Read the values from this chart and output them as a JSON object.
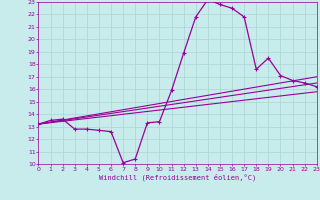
{
  "xlabel": "Windchill (Refroidissement éolien,°C)",
  "xlim": [
    0,
    23
  ],
  "ylim": [
    10,
    23
  ],
  "xticks": [
    0,
    1,
    2,
    3,
    4,
    5,
    6,
    7,
    8,
    9,
    10,
    11,
    12,
    13,
    14,
    15,
    16,
    17,
    18,
    19,
    20,
    21,
    22,
    23
  ],
  "yticks": [
    10,
    11,
    12,
    13,
    14,
    15,
    16,
    17,
    18,
    19,
    20,
    21,
    22,
    23
  ],
  "bg_color": "#c8ecec",
  "grid_color": "#aad4d4",
  "line_color": "#990099",
  "line1_x": [
    0,
    1,
    2,
    3,
    4,
    5,
    6,
    7,
    8,
    9,
    10,
    11,
    12,
    13,
    14,
    15,
    16,
    17,
    18,
    19,
    20,
    21,
    22,
    23
  ],
  "line1_y": [
    13.2,
    13.5,
    13.6,
    12.8,
    12.8,
    12.7,
    12.6,
    10.1,
    10.4,
    13.3,
    13.4,
    15.9,
    18.9,
    21.8,
    23.2,
    22.8,
    22.5,
    21.8,
    17.6,
    18.5,
    17.1,
    16.7,
    16.5,
    16.2
  ],
  "line2_x": [
    0,
    23
  ],
  "line2_y": [
    13.2,
    16.5
  ],
  "line3_x": [
    0,
    23
  ],
  "line3_y": [
    13.2,
    15.8
  ],
  "line4_x": [
    0,
    23
  ],
  "line4_y": [
    13.2,
    17.0
  ]
}
